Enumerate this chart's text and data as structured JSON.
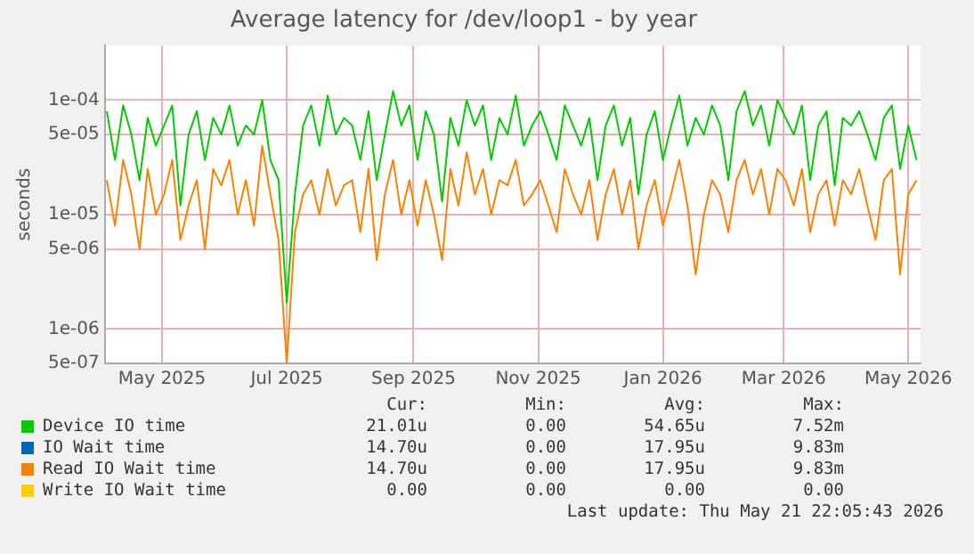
{
  "chart_data": {
    "type": "line",
    "title": "Average latency for /dev/loop1 - by year",
    "ylabel": "seconds",
    "log": "y",
    "grid": true,
    "legend": "bottom",
    "marker": "none",
    "line_style": "solid",
    "xlim": [
      "2025-04-03",
      "2026-05-07"
    ],
    "xticks": [
      {
        "value": "2025-05-01",
        "label": "May 2025"
      },
      {
        "value": "2025-07-01",
        "label": "Jul 2025"
      },
      {
        "value": "2025-09-01",
        "label": "Sep 2025"
      },
      {
        "value": "2025-11-01",
        "label": "Nov 2025"
      },
      {
        "value": "2026-01-01",
        "label": "Jan 2026"
      },
      {
        "value": "2026-03-01",
        "label": "Mar 2026"
      },
      {
        "value": "2026-05-01",
        "label": "May 2026"
      }
    ],
    "ylim": [
      5e-07,
      0.0003
    ],
    "yticks": [
      {
        "value": 5e-07,
        "label": "5e-07"
      },
      {
        "value": 1e-06,
        "label": "1e-06"
      },
      {
        "value": 5e-06,
        "label": "5e-06"
      },
      {
        "value": 1e-05,
        "label": "1e-05"
      },
      {
        "value": 5e-05,
        "label": "5e-05"
      },
      {
        "value": 0.0001,
        "label": "1e-04"
      }
    ],
    "x": [
      "2025-04-04",
      "2025-04-08",
      "2025-04-12",
      "2025-04-16",
      "2025-04-20",
      "2025-04-24",
      "2025-04-28",
      "2025-05-02",
      "2025-05-06",
      "2025-05-10",
      "2025-05-14",
      "2025-05-18",
      "2025-05-22",
      "2025-05-26",
      "2025-05-30",
      "2025-06-03",
      "2025-06-07",
      "2025-06-11",
      "2025-06-15",
      "2025-06-19",
      "2025-06-23",
      "2025-06-27",
      "2025-07-01",
      "2025-07-05",
      "2025-07-09",
      "2025-07-13",
      "2025-07-17",
      "2025-07-21",
      "2025-07-25",
      "2025-07-29",
      "2025-08-02",
      "2025-08-06",
      "2025-08-10",
      "2025-08-14",
      "2025-08-18",
      "2025-08-22",
      "2025-08-26",
      "2025-08-30",
      "2025-09-03",
      "2025-09-07",
      "2025-09-11",
      "2025-09-15",
      "2025-09-19",
      "2025-09-23",
      "2025-09-27",
      "2025-10-01",
      "2025-10-05",
      "2025-10-09",
      "2025-10-13",
      "2025-10-17",
      "2025-10-21",
      "2025-10-25",
      "2025-10-29",
      "2025-11-02",
      "2025-11-06",
      "2025-11-10",
      "2025-11-14",
      "2025-11-18",
      "2025-11-22",
      "2025-11-26",
      "2025-11-30",
      "2025-12-04",
      "2025-12-08",
      "2025-12-12",
      "2025-12-16",
      "2025-12-20",
      "2025-12-24",
      "2025-12-28",
      "2026-01-01",
      "2026-01-05",
      "2026-01-09",
      "2026-01-13",
      "2026-01-17",
      "2026-01-21",
      "2026-01-25",
      "2026-01-29",
      "2026-02-02",
      "2026-02-06",
      "2026-02-10",
      "2026-02-14",
      "2026-02-18",
      "2026-02-22",
      "2026-02-26",
      "2026-03-02",
      "2026-03-06",
      "2026-03-10",
      "2026-03-14",
      "2026-03-18",
      "2026-03-22",
      "2026-03-26",
      "2026-03-30",
      "2026-04-03",
      "2026-04-07",
      "2026-04-11",
      "2026-04-15",
      "2026-04-19",
      "2026-04-23",
      "2026-04-27",
      "2026-05-01",
      "2026-05-05"
    ],
    "series": [
      {
        "name": "Device IO time",
        "color": "#00cc00",
        "values": [
          8e-05,
          3e-05,
          9e-05,
          5e-05,
          2e-05,
          7e-05,
          4e-05,
          6e-05,
          9e-05,
          1.2e-05,
          5e-05,
          8e-05,
          3e-05,
          7e-05,
          5e-05,
          9e-05,
          4e-05,
          6e-05,
          5e-05,
          0.0001,
          3e-05,
          2e-05,
          1.7e-06,
          1.5e-05,
          6e-05,
          9e-05,
          4e-05,
          0.00011,
          5e-05,
          7e-05,
          6e-05,
          3e-05,
          8e-05,
          2e-05,
          5e-05,
          0.00012,
          6e-05,
          9e-05,
          3e-05,
          8e-05,
          5e-05,
          1.3e-05,
          7e-05,
          4e-05,
          0.0001,
          6e-05,
          9e-05,
          3e-05,
          7e-05,
          5e-05,
          0.00011,
          4e-05,
          6e-05,
          8e-05,
          5e-05,
          3e-05,
          9e-05,
          6e-05,
          4e-05,
          7e-05,
          2e-05,
          6e-05,
          9e-05,
          4e-05,
          7e-05,
          1.5e-05,
          5e-05,
          8e-05,
          3e-05,
          6e-05,
          0.00011,
          4e-05,
          7e-05,
          5e-05,
          9e-05,
          6e-05,
          2e-05,
          8e-05,
          0.00012,
          6e-05,
          9e-05,
          4e-05,
          0.0001,
          7e-05,
          5e-05,
          9e-05,
          2e-05,
          6e-05,
          8e-05,
          1.8e-05,
          7e-05,
          6e-05,
          8e-05,
          5e-05,
          3e-05,
          7e-05,
          9e-05,
          2.5e-05,
          6e-05,
          3e-05
        ]
      },
      {
        "name": "IO Wait time",
        "color": "#0066b3",
        "values": [
          null,
          null,
          null,
          null,
          null,
          null,
          null,
          null,
          null,
          null,
          null,
          null,
          null,
          null,
          null,
          null,
          null,
          null,
          null,
          null,
          null,
          null,
          null,
          null,
          null,
          null,
          null,
          null,
          null,
          null,
          null,
          null,
          null,
          null,
          null,
          null,
          null,
          null,
          null,
          null,
          null,
          null,
          null,
          null,
          null,
          null,
          null,
          null,
          null,
          null,
          null,
          null,
          null,
          null,
          null,
          null,
          null,
          null,
          null,
          null,
          null,
          null,
          null,
          null,
          null,
          null,
          null,
          null,
          null,
          null,
          null,
          null,
          null,
          null,
          null,
          null,
          null,
          null,
          null,
          null,
          null,
          null,
          null,
          null,
          null,
          null,
          null,
          null,
          null,
          null,
          null,
          null,
          null,
          null,
          null,
          null,
          null,
          null,
          null,
          null
        ]
      },
      {
        "name": "Read IO Wait time",
        "color": "#ff8000",
        "values": [
          2e-05,
          8e-06,
          3e-05,
          1.5e-05,
          5e-06,
          2.5e-05,
          1e-05,
          1.5e-05,
          3e-05,
          6e-06,
          1.2e-05,
          2e-05,
          5e-06,
          2.5e-05,
          1.8e-05,
          3e-05,
          1e-05,
          2e-05,
          8e-06,
          4e-05,
          1.5e-05,
          6e-06,
          5e-07,
          7e-06,
          1.5e-05,
          2e-05,
          1e-05,
          2.5e-05,
          1.2e-05,
          1.8e-05,
          2e-05,
          7e-06,
          2.5e-05,
          4e-06,
          1.5e-05,
          3e-05,
          1e-05,
          2e-05,
          8e-06,
          2e-05,
          1e-05,
          4e-06,
          2.5e-05,
          1.2e-05,
          3.5e-05,
          1.5e-05,
          2.5e-05,
          1e-05,
          2e-05,
          1.8e-05,
          3e-05,
          1.2e-05,
          1.5e-05,
          2e-05,
          1.2e-05,
          7e-06,
          2.5e-05,
          1.5e-05,
          1e-05,
          2e-05,
          6e-06,
          1.5e-05,
          2.5e-05,
          1e-05,
          2e-05,
          5e-06,
          1.2e-05,
          2e-05,
          8e-06,
          1.5e-05,
          3e-05,
          1.2e-05,
          3e-06,
          1e-05,
          2e-05,
          1.5e-05,
          7e-06,
          2e-05,
          3e-05,
          1.5e-05,
          2.5e-05,
          1e-05,
          2.5e-05,
          2e-05,
          1.2e-05,
          2.5e-05,
          7e-06,
          1.5e-05,
          2e-05,
          8e-06,
          2e-05,
          1.5e-05,
          2.5e-05,
          1.2e-05,
          6e-06,
          2e-05,
          2.5e-05,
          3e-06,
          1.5e-05,
          2e-05
        ]
      },
      {
        "name": "Write IO Wait time",
        "color": "#ffcc00",
        "values": [
          null,
          null,
          null,
          null,
          null,
          null,
          null,
          null,
          null,
          null,
          null,
          null,
          null,
          null,
          null,
          null,
          null,
          null,
          null,
          null,
          null,
          null,
          null,
          null,
          null,
          null,
          null,
          null,
          null,
          null,
          null,
          null,
          null,
          null,
          null,
          null,
          null,
          null,
          null,
          null,
          null,
          null,
          null,
          null,
          null,
          null,
          null,
          null,
          null,
          null,
          null,
          null,
          null,
          null,
          null,
          null,
          null,
          null,
          null,
          null,
          null,
          null,
          null,
          null,
          null,
          null,
          null,
          null,
          null,
          null,
          null,
          null,
          null,
          null,
          null,
          null,
          null,
          null,
          null,
          null,
          null,
          null,
          null,
          null,
          null,
          null,
          null,
          null,
          null,
          null,
          null,
          null,
          null,
          null,
          null,
          null,
          null,
          null,
          null,
          null
        ]
      }
    ],
    "annotations": [
      "Cur:",
      "Min:",
      "Avg:",
      "Max:",
      "21.01u",
      "0.00",
      "54.65u",
      "7.52m",
      "14.70u",
      "0.00",
      "17.95u",
      "9.83m",
      "14.70u",
      "0.00",
      "17.95u",
      "9.83m",
      "0.00",
      "0.00",
      "0.00",
      "0.00",
      "Last update: Thu May 21 22:05:43 2026"
    ]
  }
}
